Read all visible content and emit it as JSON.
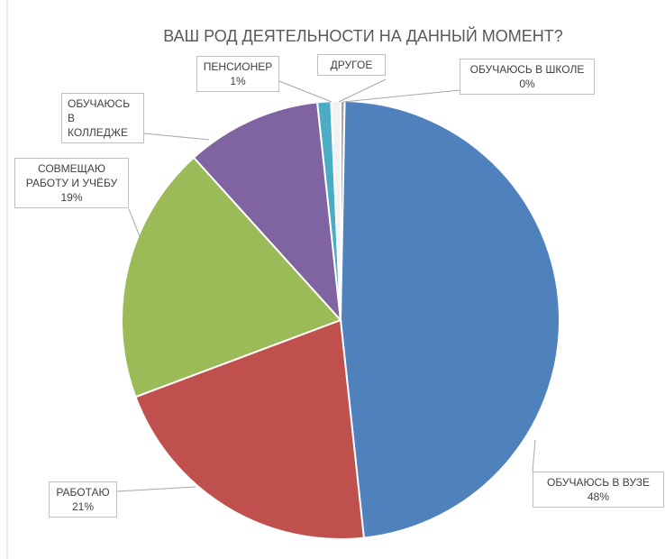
{
  "chart_data": {
    "type": "pie",
    "title": "ВАШ РОД ДЕЯТЕЛЬНОСТИ НА ДАННЫЙ МОМЕНТ?",
    "categories": [
      "ОБУЧАЮСЬ В ШКОЛЕ",
      "ОБУЧАЮСЬ В ВУЗЕ",
      "РАБОТАЮ",
      "СОВМЕЩАЮ РАБОТУ И УЧЁБУ",
      "ОБУЧАЮСЬ В КОЛЛЕДЖЕ",
      "ПЕНСИОНЕР",
      "ДРУГОЕ"
    ],
    "values": [
      0.3,
      48,
      21,
      19,
      10,
      1,
      0.7
    ],
    "value_labels": [
      "0%",
      "48%",
      "21%",
      "19%",
      null,
      "1%",
      null
    ],
    "colors": [
      "#a5a5a5",
      "#4f81bd",
      "#c0504d",
      "#9bbb59",
      "#8064a2",
      "#4bacc6",
      "#f2f2f2"
    ]
  }
}
